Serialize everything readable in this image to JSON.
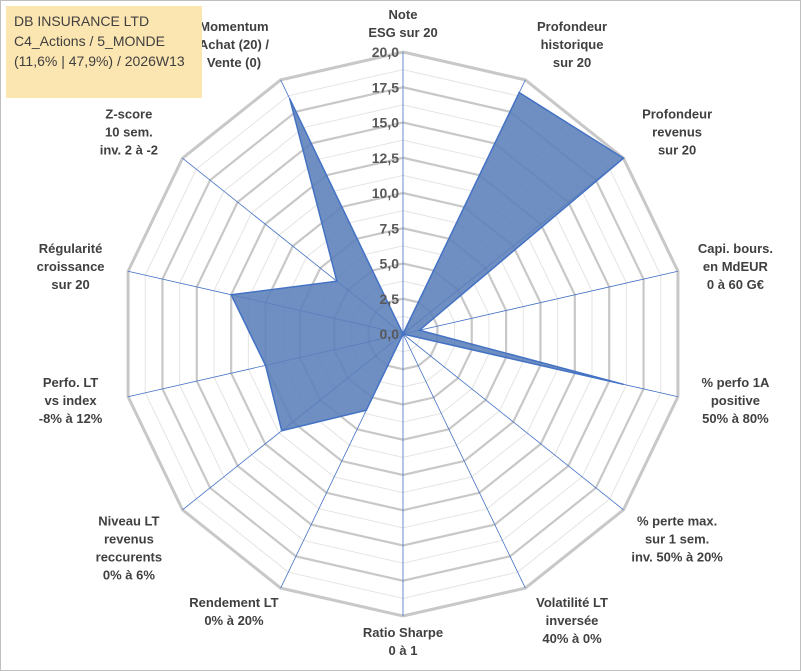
{
  "title_box": {
    "line1": "DB INSURANCE LTD",
    "line2": "C4_Actions / 5_MONDE",
    "line3": "(11,6% | 47,9%) / 2026W13"
  },
  "colors": {
    "fill": "#5b80b9",
    "stroke": "#4472c4",
    "grid": "#c8c8c8",
    "spoke": "#4472c4",
    "title_bg": "#fbe5b0"
  },
  "chart_data": {
    "type": "radar",
    "rmin": 0,
    "rmax": 20,
    "ticks": [
      "0,0",
      "2,5",
      "5,0",
      "7,5",
      "10,0",
      "12,5",
      "15,0",
      "17,5",
      "20,0"
    ],
    "tick_values": [
      0,
      2.5,
      5,
      7.5,
      10,
      12.5,
      15,
      17.5,
      20
    ],
    "axes": [
      {
        "label": [
          "Note",
          "ESG sur 20"
        ],
        "value": 0
      },
      {
        "label": [
          "Profondeur",
          "historique",
          "sur 20"
        ],
        "value": 19
      },
      {
        "label": [
          "Profondeur",
          "revenus",
          "sur 20"
        ],
        "value": 20
      },
      {
        "label": [
          "Capi. bours.",
          "en MdEUR",
          "0 à 60 G€"
        ],
        "value": 1.2
      },
      {
        "label": [
          "% perfo 1A",
          "positive",
          "50% à 80%"
        ],
        "value": 16
      },
      {
        "label": [
          "% perte max.",
          "sur 1 sem.",
          "inv. 50% à 20%"
        ],
        "value": 0
      },
      {
        "label": [
          "Volatilité LT",
          "inversée",
          "40% à 0%"
        ],
        "value": 0
      },
      {
        "label": [
          "Ratio Sharpe",
          "0 à 1"
        ],
        "value": 0
      },
      {
        "label": [
          "Rendement LT",
          "0% à 20%"
        ],
        "value": 6
      },
      {
        "label": [
          "Niveau LT",
          "revenus",
          "reccurents",
          "0% à 6%"
        ],
        "value": 11
      },
      {
        "label": [
          "Perfo. LT",
          "vs index",
          "-8% à 12%"
        ],
        "value": 10
      },
      {
        "label": [
          "Régularité",
          "croissance",
          "sur 20"
        ],
        "value": 12.5
      },
      {
        "label": [
          "Z-score",
          "10 sem.",
          "inv. 2 à -2"
        ],
        "value": 6
      },
      {
        "label": [
          "Momentum",
          "Achat (20) /",
          "Vente (0)"
        ],
        "value": 18.5
      }
    ]
  }
}
